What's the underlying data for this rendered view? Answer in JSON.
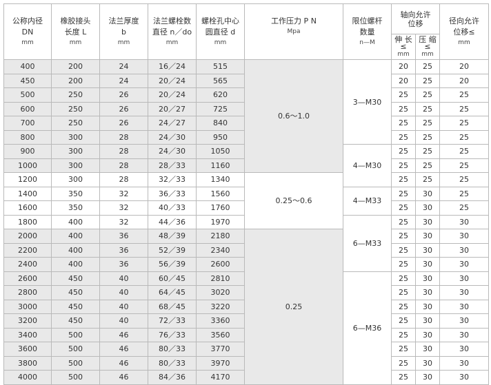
{
  "header": {
    "dn": [
      "公称内径",
      "DN",
      "mm"
    ],
    "length": [
      "橡胶接头",
      "长度 L",
      "mm"
    ],
    "thickness": [
      "法兰厚度",
      "b",
      "mm"
    ],
    "bolts": [
      "法兰螺栓数",
      "直径 n／do",
      "mm"
    ],
    "pcd": [
      "螺栓孔中心",
      "圆直径 d",
      "mm"
    ],
    "pressure": [
      "工作压力 P N",
      "Mpa"
    ],
    "limit_rods": [
      "限位螺杆",
      "数量",
      "n—M"
    ],
    "axial": "轴向允许位移",
    "extension": [
      "伸 长",
      "≤",
      "mm"
    ],
    "compression": [
      "压 缩",
      "≤",
      "mm"
    ],
    "radial": [
      "径向允许",
      "位移≤",
      "mm"
    ]
  },
  "rows": [
    [
      "400",
      "200",
      "24",
      "16／24",
      "515",
      "20",
      "25",
      "20"
    ],
    [
      "450",
      "200",
      "24",
      "20／24",
      "565",
      "20",
      "25",
      "20"
    ],
    [
      "500",
      "250",
      "26",
      "20／24",
      "620",
      "25",
      "25",
      "25"
    ],
    [
      "600",
      "250",
      "26",
      "20／27",
      "725",
      "25",
      "25",
      "25"
    ],
    [
      "700",
      "250",
      "26",
      "24／27",
      "840",
      "25",
      "25",
      "25"
    ],
    [
      "800",
      "300",
      "28",
      "24／30",
      "950",
      "25",
      "25",
      "25"
    ],
    [
      "900",
      "300",
      "28",
      "24／30",
      "1050",
      "25",
      "25",
      "25"
    ],
    [
      "1000",
      "300",
      "28",
      "28／33",
      "1160",
      "25",
      "25",
      "25"
    ],
    [
      "1200",
      "300",
      "28",
      "32／33",
      "1340",
      "25",
      "25",
      "25"
    ],
    [
      "1400",
      "350",
      "32",
      "36／33",
      "1560",
      "25",
      "30",
      "25"
    ],
    [
      "1600",
      "350",
      "32",
      "40／33",
      "1760",
      "25",
      "30",
      "25"
    ],
    [
      "1800",
      "400",
      "32",
      "44／36",
      "1970",
      "25",
      "30",
      "30"
    ],
    [
      "2000",
      "400",
      "36",
      "48／39",
      "2180",
      "25",
      "30",
      "30"
    ],
    [
      "2200",
      "400",
      "36",
      "52／39",
      "2340",
      "25",
      "30",
      "30"
    ],
    [
      "2400",
      "400",
      "36",
      "56／39",
      "2600",
      "25",
      "30",
      "30"
    ],
    [
      "2600",
      "450",
      "40",
      "60／45",
      "2810",
      "25",
      "30",
      "30"
    ],
    [
      "2800",
      "450",
      "40",
      "64／45",
      "3020",
      "25",
      "30",
      "30"
    ],
    [
      "3000",
      "450",
      "40",
      "68／45",
      "3220",
      "25",
      "30",
      "30"
    ],
    [
      "3200",
      "450",
      "40",
      "72／33",
      "3360",
      "25",
      "30",
      "30"
    ],
    [
      "3400",
      "500",
      "46",
      "76／33",
      "3560",
      "25",
      "30",
      "30"
    ],
    [
      "3600",
      "500",
      "46",
      "80／33",
      "3770",
      "25",
      "30",
      "30"
    ],
    [
      "3800",
      "500",
      "46",
      "80／33",
      "3970",
      "25",
      "30",
      "30"
    ],
    [
      "4000",
      "500",
      "46",
      "84／36",
      "4170",
      "25",
      "30",
      "30"
    ]
  ],
  "pressure_groups": [
    {
      "label": "0.6～1.0",
      "rows": 8,
      "shaded": true
    },
    {
      "label": "0.25～0.6",
      "rows": 4,
      "shaded": false
    },
    {
      "label": "0.25",
      "rows": 11,
      "shaded": true
    }
  ],
  "rod_groups": [
    {
      "label": "3—M30",
      "rows": 6
    },
    {
      "label": "4—M30",
      "rows": 3
    },
    {
      "label": "4—M33",
      "rows": 2
    },
    {
      "label": "6—M33",
      "rows": 4
    },
    {
      "label": "6—M36",
      "rows": 8
    }
  ],
  "colors": {
    "shade": "#e9e9e9",
    "border": "#b9b9b9"
  }
}
